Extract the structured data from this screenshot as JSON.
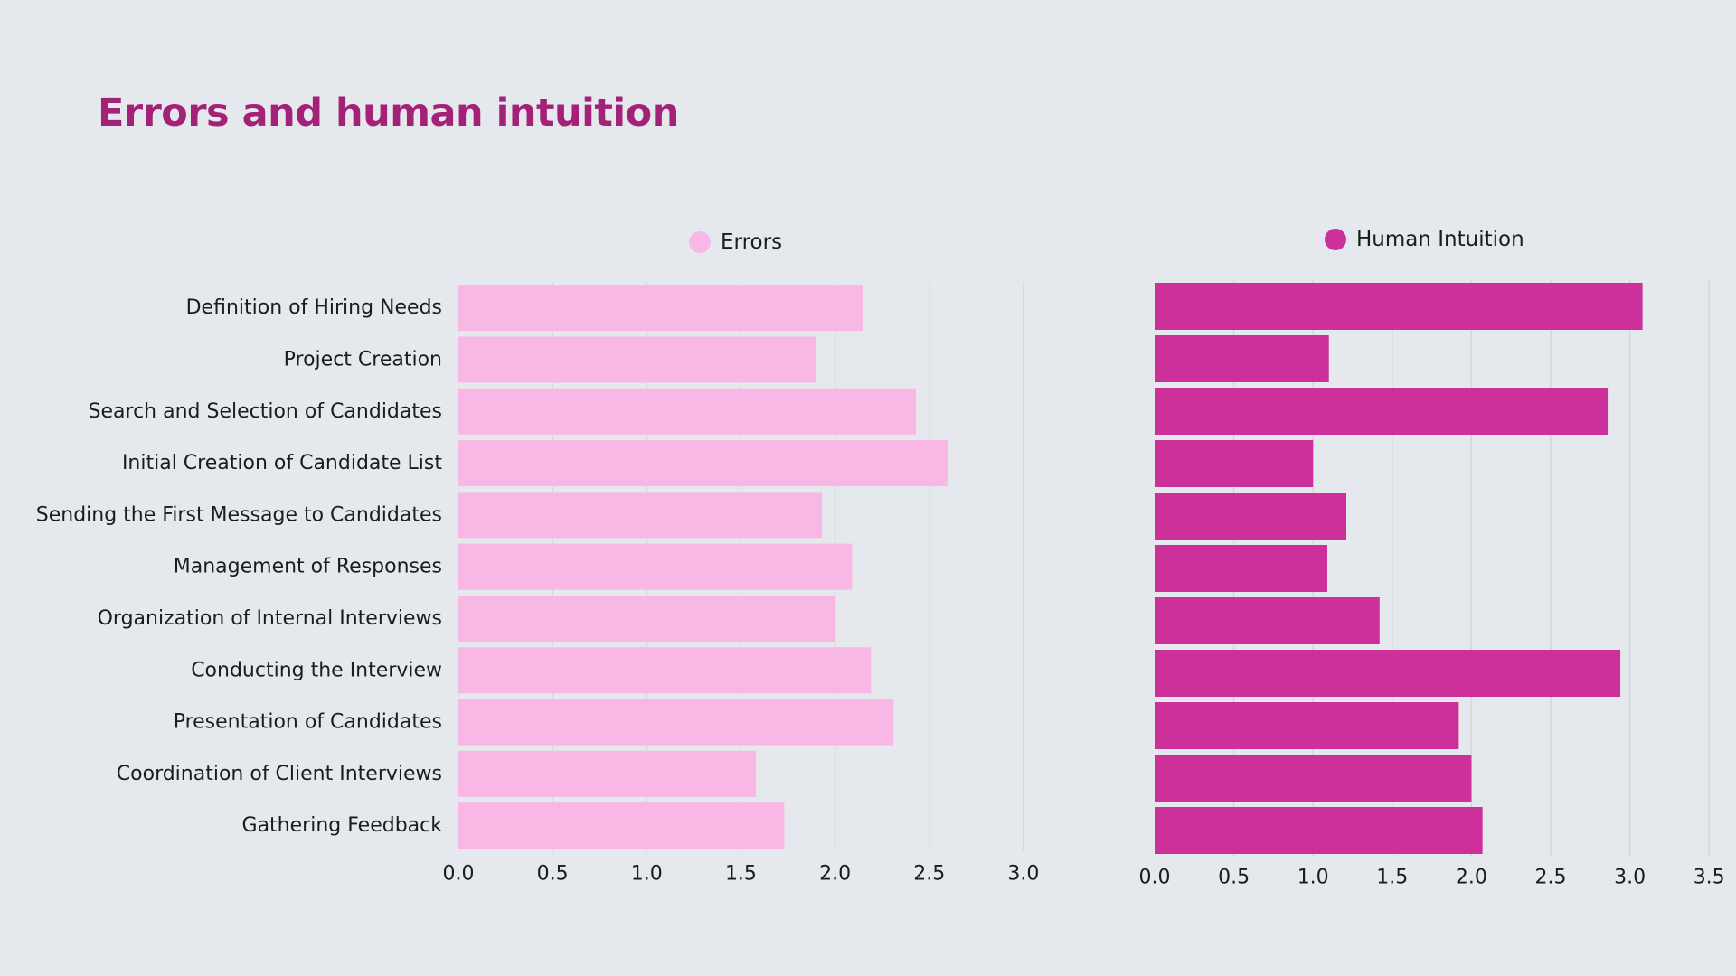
{
  "title": "Errors and human intuition",
  "chart_data": [
    {
      "type": "bar",
      "orientation": "horizontal",
      "categories": [
        "Definition of Hiring Needs",
        "Project Creation",
        "Search and Selection of Candidates",
        "Initial Creation of Candidate List",
        "Sending the First Message to Candidates",
        "Management of Responses",
        "Organization of Internal Interviews",
        "Conducting the Interview",
        "Presentation of Candidates",
        "Coordination of Client Interviews",
        "Gathering Feedback"
      ],
      "series": [
        {
          "name": "Errors",
          "values": [
            2.15,
            1.9,
            2.43,
            2.6,
            1.93,
            2.09,
            2.0,
            2.19,
            2.31,
            1.58,
            1.73
          ]
        }
      ],
      "xlim": [
        0,
        3.0
      ],
      "xticks": [
        "0.0",
        "0.5",
        "1.0",
        "1.5",
        "2.0",
        "2.5",
        "3.0"
      ],
      "grid": true,
      "legend_position": "top",
      "color": "#F8B7E5"
    },
    {
      "type": "bar",
      "orientation": "horizontal",
      "categories": [
        "Definition of Hiring Needs",
        "Project Creation",
        "Search and Selection of Candidates",
        "Initial Creation of Candidate List",
        "Sending the First Message to Candidates",
        "Management of Responses",
        "Organization of Internal Interviews",
        "Conducting the Interview",
        "Presentation of Candidates",
        "Coordination of Client Interviews",
        "Gathering Feedback"
      ],
      "series": [
        {
          "name": "Human Intuition",
          "values": [
            3.08,
            1.1,
            2.86,
            1.0,
            1.21,
            1.09,
            1.42,
            2.94,
            1.92,
            2.0,
            2.07
          ]
        }
      ],
      "xlim": [
        0,
        3.5
      ],
      "xticks": [
        "0.0",
        "0.5",
        "1.0",
        "1.5",
        "2.0",
        "2.5",
        "3.0",
        "3.5"
      ],
      "grid": true,
      "legend_position": "top",
      "color": "#CB309B"
    }
  ]
}
